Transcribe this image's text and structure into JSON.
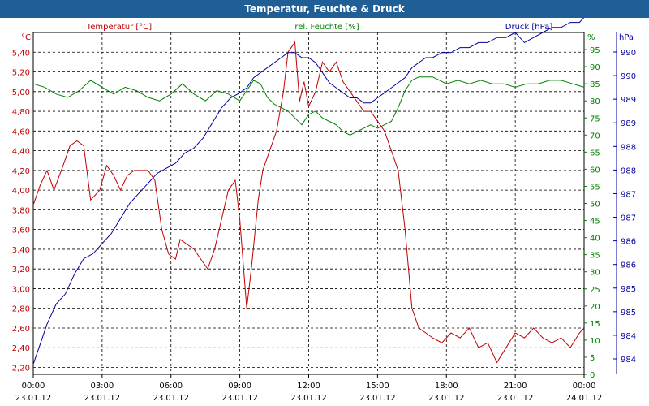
{
  "window": {
    "title": "Temperatur, Feuchte & Druck"
  },
  "chart_data": {
    "type": "line",
    "title": "Temperatur, Feuchte & Druck",
    "grid": true,
    "colors": {
      "temperature": "#c00000",
      "humidity": "#008000",
      "pressure": "#0000a0"
    },
    "x_ticks": [
      {
        "time": "00:00",
        "date": "23.01.12"
      },
      {
        "time": "03:00",
        "date": "23.01.12"
      },
      {
        "time": "06:00",
        "date": "23.01.12"
      },
      {
        "time": "09:00",
        "date": "23.01.12"
      },
      {
        "time": "12:00",
        "date": "23.01.12"
      },
      {
        "time": "15:00",
        "date": "23.01.12"
      },
      {
        "time": "18:00",
        "date": "23.01.12"
      },
      {
        "time": "21:00",
        "date": "23.01.12"
      },
      {
        "time": "00:00",
        "date": "24.01.12"
      }
    ],
    "x_range_hours": [
      0,
      24
    ],
    "axes": {
      "temperature": {
        "unit": "°C",
        "label": "Temperatur [°C]",
        "range": [
          2.13,
          5.6
        ],
        "ticks": [
          "2,20",
          "2,40",
          "2,60",
          "2,80",
          "3,00",
          "3,20",
          "3,40",
          "3,60",
          "3,80",
          "4,00",
          "4,20",
          "4,40",
          "4,60",
          "4,80",
          "5,00",
          "5,20",
          "5,40"
        ]
      },
      "humidity": {
        "unit": "%",
        "label": "rel. Feuchte [%]",
        "range": [
          0,
          100
        ],
        "ticks": [
          "0",
          "5",
          "10",
          "15",
          "20",
          "25",
          "30",
          "35",
          "40",
          "45",
          "50",
          "55",
          "60",
          "65",
          "70",
          "75",
          "80",
          "85",
          "90",
          "95"
        ]
      },
      "pressure": {
        "unit": "hPa",
        "label": "Druck [hPa]",
        "range": [
          983.6,
          990.4
        ],
        "ticks": [
          "984",
          "984",
          "985",
          "985",
          "986",
          "986",
          "987",
          "987",
          "988",
          "988",
          "989",
          "989",
          "990",
          "990"
        ]
      }
    },
    "series": [
      {
        "name": "Temperatur [°C]",
        "axis": "temperature",
        "x": [
          0,
          0.3,
          0.6,
          0.9,
          1.3,
          1.6,
          1.9,
          2.2,
          2.5,
          2.9,
          3.2,
          3.5,
          3.8,
          4.1,
          4.4,
          4.7,
          5.0,
          5.3,
          5.6,
          5.9,
          6.2,
          6.4,
          6.7,
          7.0,
          7.3,
          7.6,
          7.9,
          8.2,
          8.5,
          8.8,
          9.0,
          9.3,
          9.5,
          9.8,
          10.0,
          10.3,
          10.6,
          10.9,
          11.1,
          11.4,
          11.6,
          11.8,
          12.0,
          12.3,
          12.6,
          12.9,
          13.2,
          13.5,
          13.8,
          14.1,
          14.4,
          14.7,
          15.0,
          15.3,
          15.6,
          15.9,
          16.2,
          16.5,
          16.8,
          17.1,
          17.4,
          17.8,
          18.2,
          18.6,
          19.0,
          19.4,
          19.8,
          20.2,
          20.6,
          21.0,
          21.4,
          21.8,
          22.2,
          22.6,
          23.0,
          23.4,
          23.8,
          24.0
        ],
        "y": [
          3.85,
          4.05,
          4.2,
          4.0,
          4.25,
          4.45,
          4.5,
          4.45,
          3.9,
          4.0,
          4.25,
          4.15,
          4.0,
          4.15,
          4.2,
          4.2,
          4.2,
          4.1,
          3.6,
          3.35,
          3.3,
          3.5,
          3.45,
          3.4,
          3.3,
          3.2,
          3.4,
          3.7,
          4.0,
          4.1,
          3.7,
          2.8,
          3.2,
          3.9,
          4.2,
          4.4,
          4.6,
          5.0,
          5.4,
          5.5,
          4.9,
          5.1,
          4.85,
          5.0,
          5.3,
          5.2,
          5.3,
          5.1,
          5.0,
          4.9,
          4.8,
          4.8,
          4.7,
          4.6,
          4.4,
          4.2,
          3.6,
          2.8,
          2.6,
          2.55,
          2.5,
          2.45,
          2.55,
          2.5,
          2.6,
          2.4,
          2.45,
          2.25,
          2.4,
          2.55,
          2.5,
          2.6,
          2.5,
          2.45,
          2.5,
          2.4,
          2.55,
          2.6
        ]
      },
      {
        "name": "rel. Feuchte [%]",
        "axis": "humidity",
        "x": [
          0,
          0.5,
          1.0,
          1.5,
          2.0,
          2.5,
          3.0,
          3.5,
          4.0,
          4.5,
          5.0,
          5.5,
          6.0,
          6.5,
          7.0,
          7.5,
          8.0,
          8.5,
          9.0,
          9.3,
          9.6,
          9.9,
          10.2,
          10.5,
          10.8,
          11.1,
          11.4,
          11.7,
          12.0,
          12.3,
          12.6,
          12.9,
          13.2,
          13.5,
          13.8,
          14.1,
          14.4,
          14.7,
          15.0,
          15.3,
          15.6,
          15.9,
          16.2,
          16.5,
          16.8,
          17.1,
          17.4,
          17.7,
          18.0,
          18.5,
          19.0,
          19.5,
          20.0,
          20.5,
          21.0,
          21.5,
          22.0,
          22.5,
          23.0,
          23.5,
          24.0
        ],
        "y": [
          85,
          84,
          82,
          81,
          83,
          86,
          84,
          82,
          84,
          83,
          81,
          80,
          82,
          85,
          82,
          80,
          83,
          82,
          80,
          83,
          86,
          85,
          81,
          79,
          78,
          77,
          75,
          73,
          76,
          77,
          75,
          74,
          73,
          71,
          70,
          71,
          72,
          73,
          72,
          73,
          74,
          78,
          83,
          86,
          87,
          87,
          87,
          86,
          85,
          86,
          85,
          86,
          85,
          85,
          84,
          85,
          85,
          86,
          86,
          85,
          84
        ]
      },
      {
        "name": "Druck [hPa]",
        "axis": "pressure",
        "x": [
          0,
          0.3,
          0.6,
          1.0,
          1.4,
          1.8,
          2.2,
          2.6,
          3.0,
          3.4,
          3.8,
          4.2,
          4.6,
          5.0,
          5.4,
          5.8,
          6.2,
          6.6,
          7.0,
          7.4,
          7.8,
          8.2,
          8.6,
          9.0,
          9.3,
          9.6,
          9.9,
          10.2,
          10.5,
          10.8,
          11.1,
          11.4,
          11.7,
          12.0,
          12.3,
          12.6,
          12.9,
          13.2,
          13.5,
          13.8,
          14.1,
          14.4,
          14.7,
          15.0,
          15.3,
          15.6,
          15.9,
          16.2,
          16.5,
          16.8,
          17.1,
          17.4,
          17.8,
          18.2,
          18.6,
          19.0,
          19.4,
          19.8,
          20.2,
          20.6,
          21.0,
          21.4,
          21.8,
          22.2,
          22.6,
          23.0,
          23.4,
          23.8,
          24.0
        ],
        "y": [
          983.8,
          984.2,
          984.6,
          985.0,
          985.2,
          985.6,
          985.9,
          986.0,
          986.2,
          986.4,
          986.7,
          987.0,
          987.2,
          987.4,
          987.6,
          987.7,
          987.8,
          988.0,
          988.1,
          988.3,
          988.6,
          988.9,
          989.1,
          989.2,
          989.3,
          989.5,
          989.6,
          989.7,
          989.8,
          989.9,
          990.0,
          990.0,
          989.9,
          989.9,
          989.8,
          989.6,
          989.4,
          989.3,
          989.2,
          989.1,
          989.1,
          989.0,
          989.0,
          989.1,
          989.2,
          989.3,
          989.4,
          989.5,
          989.7,
          989.8,
          989.9,
          989.9,
          990.0,
          990.0,
          990.1,
          990.1,
          990.2,
          990.2,
          990.3,
          990.3,
          990.4,
          990.2,
          990.3,
          990.4,
          990.5,
          990.5,
          990.6,
          990.6,
          990.7
        ]
      }
    ]
  }
}
